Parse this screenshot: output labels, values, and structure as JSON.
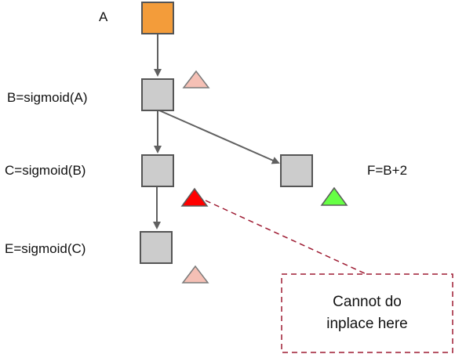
{
  "labels": {
    "a": "A",
    "b": "B=sigmoid(A)",
    "c": "C=sigmoid(B)",
    "e": "E=sigmoid(C)",
    "f": "F=B+2"
  },
  "note": {
    "line1": "Cannot do",
    "line2": "inplace here"
  },
  "colors": {
    "input_node": "#f39c3a",
    "op_node": "#cccccc",
    "node_border": "#555555",
    "edge": "#606060",
    "marker_pink": "#f5c0b5",
    "marker_red": "#ff0000",
    "marker_green": "#66ff44",
    "note_border": "#9e1b32"
  },
  "edges": [
    {
      "from": "a",
      "to": "b"
    },
    {
      "from": "b",
      "to": "c"
    },
    {
      "from": "b",
      "to": "f"
    },
    {
      "from": "c",
      "to": "e"
    }
  ]
}
